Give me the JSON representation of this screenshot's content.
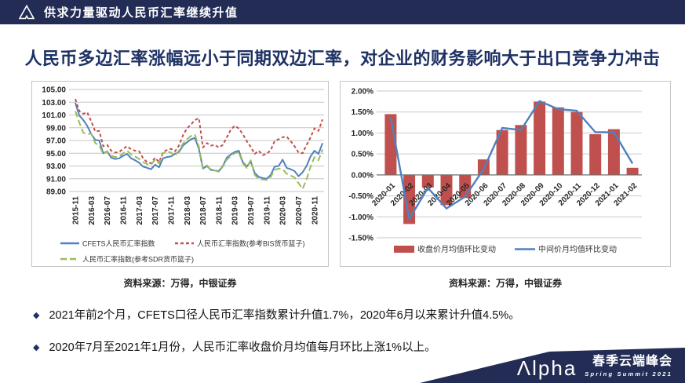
{
  "header": {
    "title": "供求力量驱动人民币汇率继续升值"
  },
  "slide_title": "人民币多边汇率涨幅远小于同期双边汇率，对企业的财务影响大于出口竞争力冲击",
  "bullet_marker": "◆",
  "bullets": [
    "2021年前2个月，CFETS口径人民币汇率指数累计升值1.7%，2020年6月以来累计升值4.5%。",
    "2020年7月至2021年1月份，人民币汇率收盘价月均值每月环比上涨1%以上。"
  ],
  "sources": {
    "left": "资料来源：万得，中银证券",
    "right": "资料来源：万得，中银证券"
  },
  "footer": {
    "logo_text": "Λlpha",
    "event_cn": "春季云端峰会",
    "event_en": "Spring Summit 2021"
  },
  "colors": {
    "navy": "#232c55",
    "title_navy": "#1e3164",
    "line_blue": "#4f81bd",
    "line_red": "#c0504d",
    "line_green": "#9bbb59",
    "bar_red": "#c0504d",
    "grid_gray": "#c6c6c6"
  },
  "chart_data": [
    {
      "type": "line",
      "title": "",
      "ylim": [
        89,
        105
      ],
      "ytick_step": 2,
      "grid": true,
      "legend_position": "bottom",
      "x": [
        "2015-11",
        "2015-12",
        "2016-01",
        "2016-02",
        "2016-03",
        "2016-04",
        "2016-05",
        "2016-06",
        "2016-07",
        "2016-08",
        "2016-09",
        "2016-10",
        "2016-11",
        "2016-12",
        "2017-01",
        "2017-02",
        "2017-03",
        "2017-04",
        "2017-05",
        "2017-06",
        "2017-07",
        "2017-08",
        "2017-09",
        "2017-10",
        "2017-11",
        "2017-12",
        "2018-01",
        "2018-02",
        "2018-03",
        "2018-04",
        "2018-05",
        "2018-06",
        "2018-07",
        "2018-08",
        "2018-09",
        "2018-10",
        "2018-11",
        "2018-12",
        "2019-01",
        "2019-02",
        "2019-03",
        "2019-04",
        "2019-05",
        "2019-06",
        "2019-07",
        "2019-08",
        "2019-09",
        "2019-10",
        "2019-11",
        "2019-12",
        "2020-01",
        "2020-02",
        "2020-03",
        "2020-04",
        "2020-05",
        "2020-06",
        "2020-07",
        "2020-08",
        "2020-09",
        "2020-10",
        "2020-11",
        "2020-12",
        "2021-01"
      ],
      "tick_labels": [
        "2015-11",
        "2016-03",
        "2016-07",
        "2016-11",
        "2017-03",
        "2017-07",
        "2017-11",
        "2018-03",
        "2018-07",
        "2018-11",
        "2019-03",
        "2019-07",
        "2019-11",
        "2020-03",
        "2020-07",
        "2020-11"
      ],
      "series": [
        {
          "name": "CFETS人民币汇率指数",
          "color": "#4f81bd",
          "style": "solid",
          "values": [
            102.9,
            100.9,
            100.2,
            99.3,
            98.0,
            97.1,
            97.0,
            95.0,
            95.3,
            94.3,
            94.1,
            94.2,
            94.6,
            94.9,
            94.2,
            93.9,
            93.5,
            92.9,
            92.7,
            92.5,
            93.2,
            92.8,
            94.2,
            94.4,
            94.5,
            94.9,
            95.2,
            96.2,
            96.7,
            97.2,
            97.4,
            95.7,
            92.6,
            93.0,
            92.4,
            92.3,
            92.2,
            93.0,
            94.3,
            94.8,
            95.2,
            95.4,
            93.6,
            92.9,
            93.7,
            91.9,
            91.3,
            91.1,
            91.0,
            91.6,
            92.9,
            93.0,
            94.0,
            92.7,
            92.5,
            92.2,
            91.4,
            92.0,
            93.0,
            94.5,
            95.4,
            94.9,
            96.6
          ]
        },
        {
          "name": "人民币汇率指数(参考BIS货币篮子)",
          "color": "#c0504d",
          "style": "dashed",
          "values": [
            103.5,
            101.6,
            101.2,
            101.4,
            100.0,
            98.4,
            98.5,
            96.1,
            96.3,
            95.4,
            95.1,
            95.2,
            95.7,
            96.1,
            95.6,
            95.4,
            95.3,
            94.2,
            93.6,
            93.4,
            94.3,
            93.6,
            95.2,
            95.5,
            95.7,
            95.3,
            96.2,
            97.8,
            98.9,
            99.5,
            100.2,
            100.5,
            95.9,
            96.6,
            96.2,
            96.3,
            95.9,
            96.3,
            97.5,
            98.7,
            99.3,
            98.9,
            98.0,
            96.9,
            96.0,
            94.9,
            95.4,
            94.7,
            94.9,
            95.5,
            96.9,
            97.2,
            97.5,
            97.6,
            96.9,
            96.1,
            95.1,
            95.0,
            96.3,
            97.5,
            98.9,
            98.5,
            100.3
          ]
        },
        {
          "name": "人民币汇率指数(参考SDR货币篮子)",
          "color": "#9bbb59",
          "style": "dashed-long",
          "values": [
            101.6,
            99.8,
            98.2,
            98.0,
            98.1,
            96.6,
            96.2,
            94.9,
            95.3,
            94.6,
            94.4,
            94.5,
            95.0,
            95.4,
            94.8,
            94.5,
            94.1,
            93.6,
            93.3,
            93.2,
            94.0,
            93.4,
            95.0,
            95.3,
            95.1,
            94.6,
            95.4,
            96.5,
            97.2,
            97.7,
            97.9,
            96.0,
            92.7,
            93.1,
            92.4,
            92.3,
            92.1,
            92.9,
            94.0,
            94.6,
            95.0,
            95.2,
            93.4,
            92.7,
            93.9,
            91.6,
            91.0,
            90.9,
            90.8,
            91.3,
            92.4,
            92.6,
            92.5,
            91.8,
            91.5,
            91.2,
            90.3,
            89.4,
            90.9,
            92.9,
            94.4,
            93.9,
            95.6
          ]
        }
      ]
    },
    {
      "type": "bar+line",
      "title": "",
      "ylim": [
        -1.5,
        2.0
      ],
      "ytick_step": 0.5,
      "grid": true,
      "legend_position": "bottom",
      "categories": [
        "2020-01",
        "2020-02",
        "2020-03",
        "2020-04",
        "2020-05",
        "2020-06",
        "2020-07",
        "2020-08",
        "2020-09",
        "2020-10",
        "2020-11",
        "2020-12",
        "2021-01",
        "2021-02"
      ],
      "bar_series": {
        "name": "收盘价月均值环比变动",
        "color": "#c0504d",
        "values": [
          1.45,
          -1.17,
          -0.3,
          -0.72,
          -0.55,
          0.37,
          1.07,
          1.19,
          1.75,
          1.61,
          1.5,
          0.97,
          1.09,
          0.17
        ]
      },
      "line_series": {
        "name": "中间价月均值环比变动",
        "color": "#4f81bd",
        "values": [
          1.37,
          -1.05,
          -0.31,
          -0.8,
          -0.52,
          0.14,
          1.12,
          1.07,
          1.76,
          1.57,
          1.53,
          1.02,
          1.02,
          0.27
        ]
      }
    }
  ]
}
